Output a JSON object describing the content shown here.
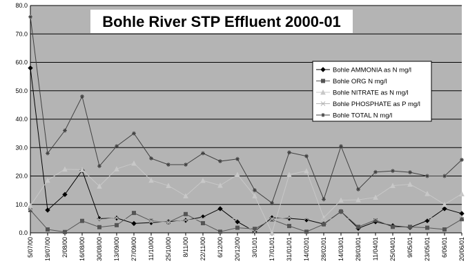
{
  "chart_data": {
    "type": "line",
    "title": "Bohle River STP Effluent 2000-01",
    "xlabel": "",
    "ylabel": "",
    "ylim": [
      0,
      80
    ],
    "y_ticks": [
      "0.0",
      "10.0",
      "20.0",
      "30.0",
      "40.0",
      "50.0",
      "60.0",
      "70.0",
      "80.0"
    ],
    "grid": "horizontal",
    "legend_position": "right",
    "categories": [
      "5/07/00",
      "19/07/00",
      "2/08/00",
      "16/08/00",
      "30/08/00",
      "13/09/00",
      "27/09/00",
      "11/10/00",
      "25/10/00",
      "8/11/00",
      "22/11/00",
      "6/12/00",
      "20/12/00",
      "3/01/01",
      "17/01/01",
      "31/01/01",
      "14/02/01",
      "28/02/01",
      "14/03/01",
      "28/03/01",
      "11/04/01",
      "25/04/01",
      "9/05/01",
      "23/05/01",
      "6/06/01",
      "20/06/01"
    ],
    "series": [
      {
        "name": "Bohle AMMONIA as N mg/l",
        "color": "#000000",
        "marker": "diamond",
        "values": [
          58,
          8,
          13.5,
          22,
          5,
          5.2,
          3.3,
          3.6,
          3.9,
          4.4,
          5.6,
          8.5,
          3.9,
          0.5,
          5.3,
          5.1,
          4.6,
          3.1,
          7.5,
          1.6,
          3.9,
          2.5,
          1.9,
          4.3,
          8.5,
          6.8
        ]
      },
      {
        "name": "Bohle ORG N mg/l",
        "color": "#555555",
        "marker": "square",
        "values": [
          8,
          1.2,
          0.3,
          4.2,
          2,
          2.7,
          7,
          4.2,
          3.7,
          6.6,
          3.4,
          0.4,
          1.8,
          1.4,
          4.7,
          2.4,
          0.4,
          3,
          7.5,
          2.1,
          4.5,
          2.1,
          2.1,
          1.8,
          1.2,
          4.8
        ]
      },
      {
        "name": "Bohle NITRATE as N mg/l",
        "color": "#c8c8c8",
        "marker": "triangle",
        "values": [
          9.5,
          18.5,
          22.4,
          22.2,
          16.4,
          22.5,
          24.5,
          18.5,
          16.6,
          13,
          18.4,
          16.7,
          20.5,
          13,
          0,
          20.5,
          21.8,
          5.3,
          11.5,
          11.6,
          12.5,
          16.6,
          17.1,
          13.8,
          10,
          13.7
        ]
      },
      {
        "name": "Bohle PHOSPHATE as P mg/l",
        "color": "#b4b4b4",
        "marker": "x",
        "values": [
          8.5,
          5,
          5.6,
          6.3,
          4.6,
          5.3,
          4.4,
          4.1,
          3.6,
          4.5,
          4.9,
          5.3,
          4.9,
          0.3,
          4.9,
          5.4,
          5.2,
          4.8,
          5,
          5.2,
          5.2,
          5.4,
          5.2,
          5.2,
          5.5,
          5.8
        ]
      },
      {
        "name": "Bohle TOTAL N mg/l",
        "color": "#404040",
        "marker": "star",
        "values": [
          76,
          28,
          36,
          48,
          23.5,
          30.5,
          35,
          26.2,
          24,
          24,
          28,
          25.2,
          26,
          15,
          10.5,
          28.3,
          27,
          11.8,
          30.5,
          15.3,
          21.4,
          21.8,
          21.3,
          20,
          20,
          25.7
        ]
      }
    ]
  }
}
